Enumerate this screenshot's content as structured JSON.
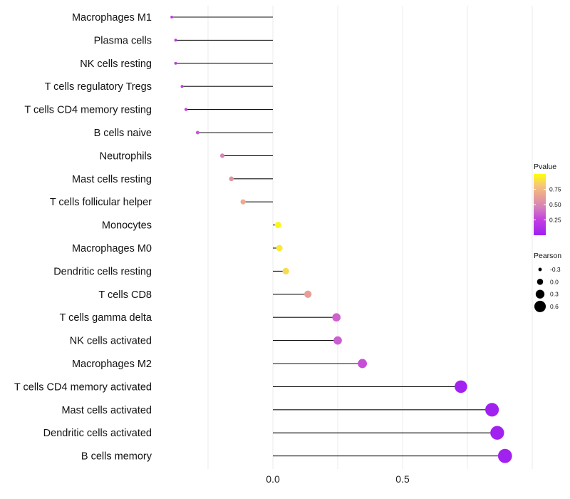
{
  "chart_data": {
    "type": "lollipop",
    "title": "",
    "xlabel": "",
    "ylabel": "",
    "xlim": [
      -0.5,
      1.15
    ],
    "grid": true,
    "x_ticks": [
      {
        "value": 0.0,
        "label": "0.0"
      },
      {
        "value": 0.5,
        "label": "0.5"
      }
    ],
    "minor_grid": [
      -0.25,
      0.25,
      0.75,
      1.0
    ],
    "color_range": [
      "#A020F0",
      "#FFFF00"
    ],
    "points": [
      {
        "category": "Macrophages M1",
        "pearson": -0.39,
        "pvalue": 0.2
      },
      {
        "category": "Plasma cells",
        "pearson": -0.375,
        "pvalue": 0.22
      },
      {
        "category": "NK cells resting",
        "pearson": -0.375,
        "pvalue": 0.22
      },
      {
        "category": "T cells regulatory  Tregs ",
        "pearson": -0.35,
        "pvalue": 0.25
      },
      {
        "category": "T cells CD4 memory resting",
        "pearson": -0.335,
        "pvalue": 0.27
      },
      {
        "category": "B cells naive",
        "pearson": -0.29,
        "pvalue": 0.33
      },
      {
        "category": "Neutrophils",
        "pearson": -0.195,
        "pvalue": 0.48
      },
      {
        "category": "Mast cells resting",
        "pearson": -0.16,
        "pvalue": 0.56
      },
      {
        "category": "T cells follicular helper",
        "pearson": -0.115,
        "pvalue": 0.68
      },
      {
        "category": "Monocytes",
        "pearson": 0.02,
        "pvalue": 0.97
      },
      {
        "category": "Macrophages M0",
        "pearson": 0.025,
        "pvalue": 0.93
      },
      {
        "category": "Dendritic cells resting",
        "pearson": 0.05,
        "pvalue": 0.88
      },
      {
        "category": "T cells CD8",
        "pearson": 0.135,
        "pvalue": 0.62
      },
      {
        "category": "T cells gamma delta",
        "pearson": 0.245,
        "pvalue": 0.36
      },
      {
        "category": "NK cells activated",
        "pearson": 0.25,
        "pvalue": 0.35
      },
      {
        "category": "Macrophages M2",
        "pearson": 0.345,
        "pvalue": 0.3
      },
      {
        "category": "T cells CD4 memory activated",
        "pearson": 0.725,
        "pvalue": 0.02
      },
      {
        "category": "Mast cells activated",
        "pearson": 0.845,
        "pvalue": 0.01
      },
      {
        "category": "Dendritic cells activated",
        "pearson": 0.865,
        "pvalue": 0.01
      },
      {
        "category": "B cells memory",
        "pearson": 0.895,
        "pvalue": 0.01
      }
    ],
    "legend": {
      "pvalue": {
        "title": "Pvalue",
        "placement": "right",
        "range": [
          0.0,
          1.0
        ],
        "ticks": [
          {
            "value": 0.25,
            "label": "0.25"
          },
          {
            "value": 0.5,
            "label": "0.50"
          },
          {
            "value": 0.75,
            "label": "0.75"
          }
        ]
      },
      "pearson": {
        "title": "Pearson",
        "placement": "right",
        "entries": [
          {
            "value": -0.3,
            "label": "-0.3"
          },
          {
            "value": 0.0,
            "label": "0.0"
          },
          {
            "value": 0.3,
            "label": "0.3"
          },
          {
            "value": 0.6,
            "label": "0.6"
          }
        ]
      }
    }
  }
}
